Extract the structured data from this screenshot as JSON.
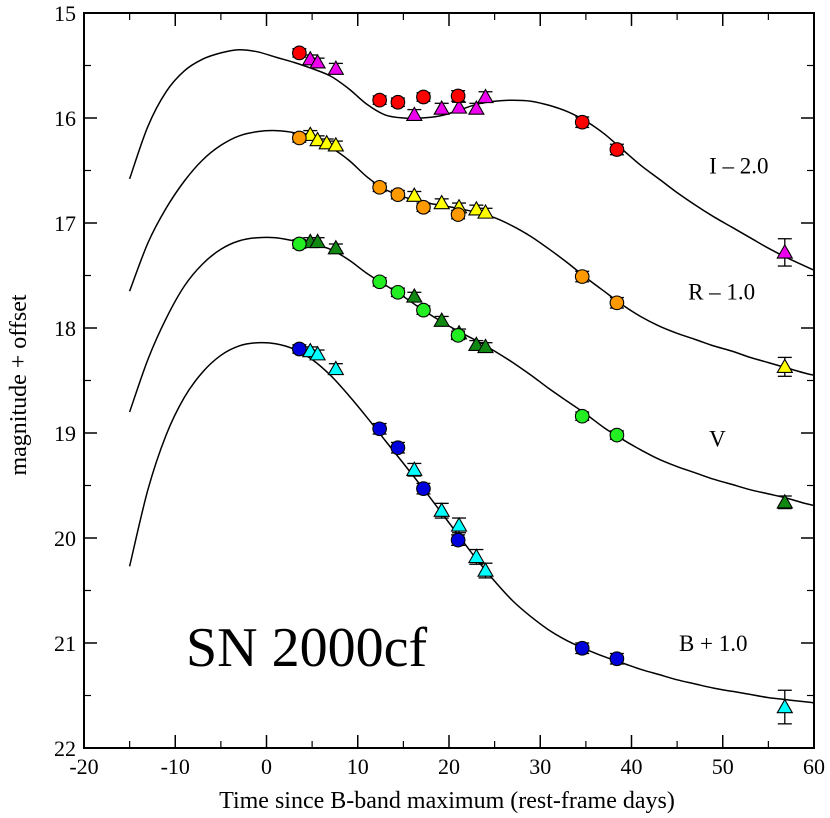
{
  "chart_data": {
    "type": "scatter",
    "title": "",
    "annotation": "SN 2000cf",
    "xlabel": "Time since B-band maximum (rest-frame days)",
    "ylabel": "magnitude + offset",
    "xlim": [
      -20,
      60
    ],
    "ylim": [
      22,
      15
    ],
    "y_inverted": true,
    "grid": false,
    "x_ticks": [
      -20,
      -10,
      0,
      10,
      20,
      30,
      40,
      50,
      60
    ],
    "y_ticks": [
      15,
      16,
      17,
      18,
      19,
      20,
      21,
      22
    ],
    "colors": {
      "I_circle": "#ff0000",
      "I_triangle": "#ee00ee",
      "R_circle": "#ff9900",
      "R_triangle": "#ffff00",
      "V_circle": "#22ee22",
      "V_triangle": "#118811",
      "B_circle": "#0000dd",
      "B_triangle": "#00ffff"
    },
    "series": [
      {
        "name": "I − 2.0",
        "band": "I",
        "label": "I – 2.0",
        "label_pos": [
          48.5,
          16.45
        ],
        "curve": [
          [
            -15,
            16.58
          ],
          [
            -13,
            16.08
          ],
          [
            -11,
            15.75
          ],
          [
            -9,
            15.55
          ],
          [
            -7,
            15.44
          ],
          [
            -5,
            15.38
          ],
          [
            -3,
            15.35
          ],
          [
            -1,
            15.37
          ],
          [
            1,
            15.42
          ],
          [
            3,
            15.47
          ],
          [
            5,
            15.53
          ],
          [
            7,
            15.6
          ],
          [
            9,
            15.72
          ],
          [
            11,
            15.87
          ],
          [
            13,
            15.97
          ],
          [
            15,
            16.0
          ],
          [
            17,
            16.0
          ],
          [
            19,
            15.98
          ],
          [
            21,
            15.93
          ],
          [
            23,
            15.87
          ],
          [
            25,
            15.84
          ],
          [
            27,
            15.83
          ],
          [
            29,
            15.84
          ],
          [
            31,
            15.88
          ],
          [
            33,
            15.94
          ],
          [
            35,
            16.03
          ],
          [
            37,
            16.15
          ],
          [
            39,
            16.3
          ],
          [
            41,
            16.45
          ],
          [
            43,
            16.58
          ],
          [
            45,
            16.71
          ],
          [
            47,
            16.83
          ],
          [
            49,
            16.94
          ],
          [
            51,
            17.04
          ],
          [
            53,
            17.14
          ],
          [
            55,
            17.24
          ],
          [
            57,
            17.33
          ],
          [
            59,
            17.41
          ],
          [
            60,
            17.45
          ]
        ],
        "circles": [
          [
            3.6,
            15.38
          ],
          [
            12.4,
            15.83
          ],
          [
            14.4,
            15.85
          ],
          [
            17.2,
            15.8
          ],
          [
            21.0,
            15.79
          ],
          [
            34.6,
            16.04
          ],
          [
            38.4,
            16.3
          ]
        ],
        "triangles": [
          [
            4.8,
            15.44
          ],
          [
            5.6,
            15.47
          ],
          [
            7.6,
            15.53
          ],
          [
            16.2,
            15.97
          ],
          [
            19.2,
            15.91
          ],
          [
            21.1,
            15.9
          ],
          [
            23.0,
            15.91
          ],
          [
            24.0,
            15.8
          ],
          [
            56.8,
            17.28
          ]
        ],
        "errors": [
          [
            3.6,
            0.04
          ],
          [
            12.4,
            0.04
          ],
          [
            14.4,
            0.04
          ],
          [
            17.2,
            0.04
          ],
          [
            21.0,
            0.05
          ],
          [
            34.6,
            0.05
          ],
          [
            38.4,
            0.05
          ],
          [
            4.8,
            0.04
          ],
          [
            5.6,
            0.04
          ],
          [
            7.6,
            0.05
          ],
          [
            16.2,
            0.05
          ],
          [
            19.2,
            0.05
          ],
          [
            21.1,
            0.05
          ],
          [
            23.0,
            0.05
          ],
          [
            24.0,
            0.05
          ],
          [
            56.8,
            0.13
          ]
        ]
      },
      {
        "name": "R − 1.0",
        "band": "R",
        "label": "R – 1.0",
        "label_pos": [
          46.2,
          17.65
        ],
        "curve": [
          [
            -15,
            17.65
          ],
          [
            -13,
            17.19
          ],
          [
            -11,
            16.86
          ],
          [
            -9,
            16.6
          ],
          [
            -7,
            16.4
          ],
          [
            -5,
            16.26
          ],
          [
            -3,
            16.17
          ],
          [
            -1,
            16.13
          ],
          [
            1,
            16.12
          ],
          [
            3,
            16.14
          ],
          [
            5,
            16.2
          ],
          [
            7,
            16.28
          ],
          [
            9,
            16.4
          ],
          [
            11,
            16.56
          ],
          [
            13,
            16.68
          ],
          [
            15,
            16.75
          ],
          [
            17,
            16.8
          ],
          [
            19,
            16.83
          ],
          [
            21,
            16.86
          ],
          [
            23,
            16.9
          ],
          [
            25,
            16.95
          ],
          [
            27,
            17.03
          ],
          [
            29,
            17.13
          ],
          [
            31,
            17.25
          ],
          [
            33,
            17.38
          ],
          [
            35,
            17.52
          ],
          [
            37,
            17.65
          ],
          [
            39,
            17.78
          ],
          [
            41,
            17.89
          ],
          [
            43,
            17.98
          ],
          [
            45,
            18.05
          ],
          [
            47,
            18.11
          ],
          [
            49,
            18.17
          ],
          [
            51,
            18.22
          ],
          [
            53,
            18.28
          ],
          [
            55,
            18.33
          ],
          [
            57,
            18.38
          ],
          [
            59,
            18.43
          ],
          [
            60,
            18.45
          ]
        ],
        "circles": [
          [
            3.6,
            16.19
          ],
          [
            12.4,
            16.66
          ],
          [
            14.4,
            16.73
          ],
          [
            17.2,
            16.85
          ],
          [
            21.0,
            16.92
          ],
          [
            34.6,
            17.51
          ],
          [
            38.4,
            17.76
          ]
        ],
        "triangles": [
          [
            4.8,
            16.16
          ],
          [
            5.6,
            16.21
          ],
          [
            6.6,
            16.24
          ],
          [
            7.6,
            16.26
          ],
          [
            16.2,
            16.74
          ],
          [
            19.2,
            16.81
          ],
          [
            21.1,
            16.85
          ],
          [
            23.0,
            16.87
          ],
          [
            24.0,
            16.9
          ],
          [
            56.8,
            18.37
          ]
        ],
        "errors": [
          [
            3.6,
            0.04
          ],
          [
            12.4,
            0.04
          ],
          [
            14.4,
            0.04
          ],
          [
            17.2,
            0.04
          ],
          [
            21.0,
            0.04
          ],
          [
            34.6,
            0.05
          ],
          [
            38.4,
            0.05
          ],
          [
            4.8,
            0.04
          ],
          [
            5.6,
            0.04
          ],
          [
            6.6,
            0.04
          ],
          [
            7.6,
            0.04
          ],
          [
            16.2,
            0.04
          ],
          [
            19.2,
            0.04
          ],
          [
            21.1,
            0.04
          ],
          [
            23.0,
            0.04
          ],
          [
            24.0,
            0.04
          ],
          [
            56.8,
            0.09
          ]
        ]
      },
      {
        "name": "V",
        "band": "V",
        "label": "V",
        "label_pos": [
          48.5,
          19.05
        ],
        "curve": [
          [
            -15,
            18.8
          ],
          [
            -13,
            18.3
          ],
          [
            -11,
            17.91
          ],
          [
            -9,
            17.6
          ],
          [
            -7,
            17.39
          ],
          [
            -5,
            17.25
          ],
          [
            -3,
            17.17
          ],
          [
            -1,
            17.14
          ],
          [
            1,
            17.14
          ],
          [
            3,
            17.17
          ],
          [
            5,
            17.2
          ],
          [
            7,
            17.25
          ],
          [
            9,
            17.35
          ],
          [
            11,
            17.48
          ],
          [
            13,
            17.59
          ],
          [
            15,
            17.7
          ],
          [
            17,
            17.82
          ],
          [
            19,
            17.93
          ],
          [
            21,
            18.03
          ],
          [
            23,
            18.12
          ],
          [
            25,
            18.22
          ],
          [
            27,
            18.33
          ],
          [
            29,
            18.45
          ],
          [
            31,
            18.58
          ],
          [
            33,
            18.7
          ],
          [
            35,
            18.82
          ],
          [
            37,
            18.95
          ],
          [
            39,
            19.06
          ],
          [
            41,
            19.16
          ],
          [
            43,
            19.25
          ],
          [
            45,
            19.32
          ],
          [
            47,
            19.38
          ],
          [
            49,
            19.44
          ],
          [
            51,
            19.49
          ],
          [
            53,
            19.54
          ],
          [
            55,
            19.58
          ],
          [
            57,
            19.62
          ],
          [
            59,
            19.67
          ],
          [
            60,
            19.69
          ]
        ],
        "circles": [
          [
            3.6,
            17.2
          ],
          [
            12.4,
            17.56
          ],
          [
            14.4,
            17.66
          ],
          [
            17.2,
            17.83
          ],
          [
            21.0,
            18.07
          ],
          [
            34.6,
            18.84
          ],
          [
            38.4,
            19.02
          ]
        ],
        "triangles": [
          [
            4.8,
            17.18
          ],
          [
            5.6,
            17.18
          ],
          [
            7.6,
            17.24
          ],
          [
            16.2,
            17.7
          ],
          [
            19.2,
            17.93
          ],
          [
            21.1,
            18.05
          ],
          [
            23.0,
            18.16
          ],
          [
            24.0,
            18.18
          ],
          [
            56.8,
            19.66
          ]
        ],
        "errors": [
          [
            3.6,
            0.04
          ],
          [
            12.4,
            0.04
          ],
          [
            14.4,
            0.04
          ],
          [
            17.2,
            0.04
          ],
          [
            21.0,
            0.04
          ],
          [
            34.6,
            0.04
          ],
          [
            38.4,
            0.04
          ],
          [
            4.8,
            0.04
          ],
          [
            5.6,
            0.04
          ],
          [
            7.6,
            0.04
          ],
          [
            16.2,
            0.04
          ],
          [
            19.2,
            0.04
          ],
          [
            21.1,
            0.04
          ],
          [
            23.0,
            0.04
          ],
          [
            24.0,
            0.04
          ],
          [
            56.8,
            0.06
          ]
        ]
      },
      {
        "name": "B + 1.0",
        "band": "B",
        "label": "B + 1.0",
        "label_pos": [
          45.2,
          21.0
        ],
        "curve": [
          [
            -15,
            20.27
          ],
          [
            -13,
            19.54
          ],
          [
            -11,
            19.02
          ],
          [
            -9,
            18.66
          ],
          [
            -7,
            18.42
          ],
          [
            -5,
            18.26
          ],
          [
            -3,
            18.17
          ],
          [
            -1,
            18.14
          ],
          [
            1,
            18.15
          ],
          [
            3,
            18.2
          ],
          [
            5,
            18.3
          ],
          [
            7,
            18.45
          ],
          [
            9,
            18.64
          ],
          [
            11,
            18.85
          ],
          [
            13,
            19.07
          ],
          [
            15,
            19.29
          ],
          [
            17,
            19.51
          ],
          [
            19,
            19.74
          ],
          [
            21,
            19.97
          ],
          [
            23,
            20.2
          ],
          [
            25,
            20.41
          ],
          [
            27,
            20.6
          ],
          [
            29,
            20.75
          ],
          [
            31,
            20.88
          ],
          [
            33,
            20.98
          ],
          [
            35,
            21.06
          ],
          [
            37,
            21.13
          ],
          [
            39,
            21.19
          ],
          [
            41,
            21.25
          ],
          [
            43,
            21.3
          ],
          [
            45,
            21.35
          ],
          [
            47,
            21.39
          ],
          [
            49,
            21.43
          ],
          [
            51,
            21.46
          ],
          [
            53,
            21.49
          ],
          [
            55,
            21.52
          ],
          [
            57,
            21.54
          ],
          [
            59,
            21.56
          ],
          [
            60,
            21.57
          ]
        ],
        "circles": [
          [
            3.6,
            18.2
          ],
          [
            12.4,
            18.96
          ],
          [
            14.4,
            19.14
          ],
          [
            17.2,
            19.53
          ],
          [
            21.0,
            20.02
          ],
          [
            34.6,
            21.05
          ],
          [
            38.4,
            21.15
          ]
        ],
        "triangles": [
          [
            4.8,
            18.22
          ],
          [
            5.6,
            18.25
          ],
          [
            7.6,
            18.39
          ],
          [
            16.2,
            19.35
          ],
          [
            19.2,
            19.74
          ],
          [
            21.1,
            19.88
          ],
          [
            23.0,
            20.18
          ],
          [
            24.0,
            20.31
          ],
          [
            56.8,
            21.61
          ]
        ],
        "errors": [
          [
            3.6,
            0.04
          ],
          [
            12.4,
            0.05
          ],
          [
            14.4,
            0.05
          ],
          [
            17.2,
            0.05
          ],
          [
            21.0,
            0.05
          ],
          [
            34.6,
            0.05
          ],
          [
            38.4,
            0.05
          ],
          [
            4.8,
            0.04
          ],
          [
            5.6,
            0.04
          ],
          [
            7.6,
            0.05
          ],
          [
            16.2,
            0.06
          ],
          [
            19.2,
            0.07
          ],
          [
            21.1,
            0.07
          ],
          [
            23.0,
            0.07
          ],
          [
            24.0,
            0.07
          ],
          [
            56.8,
            0.16
          ]
        ]
      }
    ]
  }
}
